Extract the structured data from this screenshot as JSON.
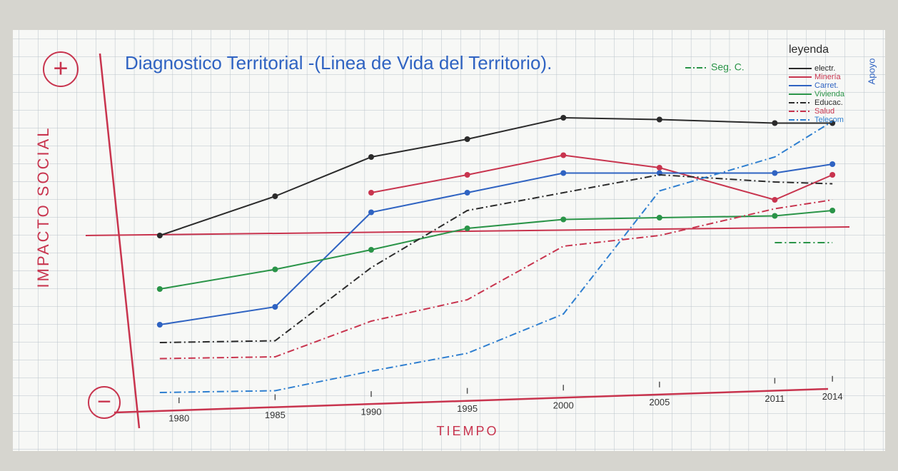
{
  "chart_data": {
    "type": "line",
    "title": "Diagnostico Territorial -(Linea de Vida del Territorio).",
    "y_label": "IMPACTO SOCIAL",
    "x_label": "TIEMPO",
    "y_top_label": "+",
    "y_bottom_label": "−",
    "legend_title": "leyenda",
    "annotation": "Apoyo",
    "x": [
      1979,
      1985,
      1990,
      1995,
      2000,
      2005,
      2011,
      2014
    ],
    "xlim": [
      1977,
      2016
    ],
    "xticks": [
      1980,
      1985,
      1990,
      1995,
      2000,
      2005,
      2011,
      2014
    ],
    "ylim": [
      -10,
      10
    ],
    "grid": true,
    "series": [
      {
        "name": "electr.",
        "color": "#2b2b2b",
        "line_style": "solid",
        "values": [
          0,
          2.2,
          4.4,
          5.4,
          6.6,
          6.5,
          6.3,
          6.3
        ]
      },
      {
        "name": "Minería",
        "color": "#c8344e",
        "line_style": "solid",
        "values": [
          null,
          null,
          2.4,
          3.4,
          4.5,
          3.8,
          2.0,
          3.4
        ]
      },
      {
        "name": "Carret.",
        "color": "#2f63c2",
        "line_style": "solid",
        "values": [
          -5.0,
          -4.0,
          1.3,
          2.4,
          3.5,
          3.5,
          3.5,
          4.0
        ]
      },
      {
        "name": "Vivienda",
        "color": "#2a9448",
        "line_style": "solid",
        "values": [
          -3.0,
          -1.9,
          -0.8,
          0.4,
          0.9,
          1.0,
          1.1,
          1.4
        ]
      },
      {
        "name": "Educac.",
        "color": "#2b2b2b",
        "line_style": "dashdot",
        "values": [
          -6.0,
          -5.9,
          -1.8,
          1.4,
          2.4,
          3.4,
          3.0,
          2.9
        ]
      },
      {
        "name": "Salud",
        "color": "#c8344e",
        "line_style": "dashdot",
        "values": [
          -6.9,
          -6.8,
          -4.8,
          -3.6,
          -0.6,
          0,
          1.5,
          2.0
        ]
      },
      {
        "name": "Telecom",
        "color": "#2f7fd0",
        "line_style": "dashdot",
        "values": [
          -8.8,
          -8.7,
          -7.6,
          -6.6,
          -4.4,
          2.5,
          4.4,
          6.4
        ]
      },
      {
        "name": "Seg. C.",
        "color": "#2a9448",
        "line_style": "dashdot",
        "values": [
          null,
          null,
          null,
          null,
          null,
          null,
          -0.4,
          -0.4
        ]
      }
    ]
  }
}
